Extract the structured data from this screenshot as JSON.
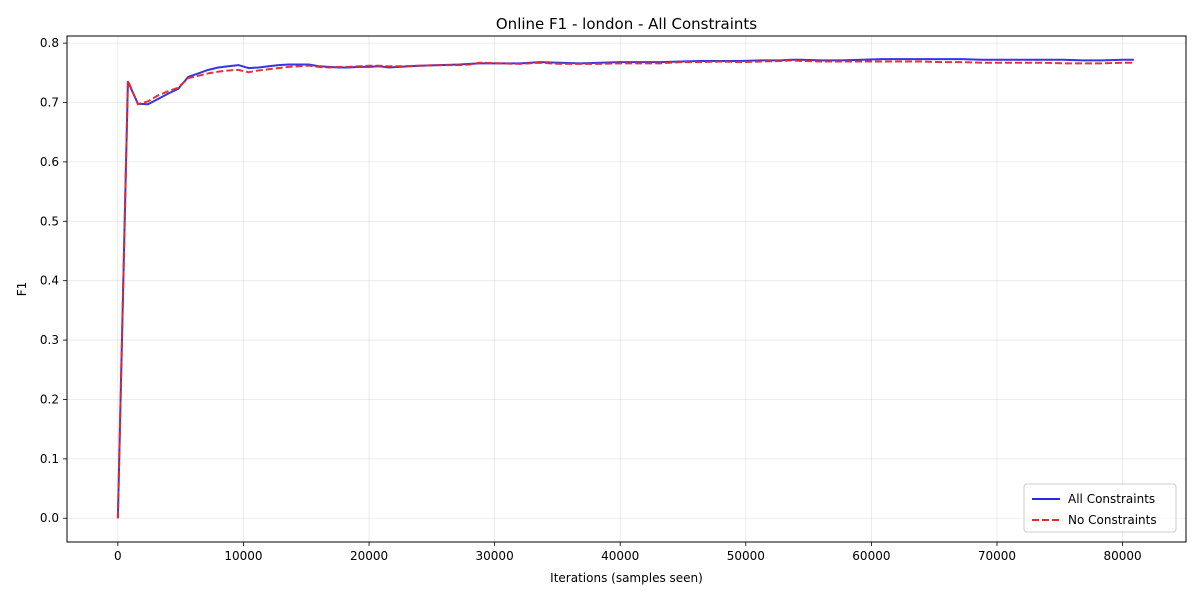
{
  "chart_data": {
    "type": "line",
    "title": "Online F1 - london - All Constraints",
    "xlabel": "Iterations (samples seen)",
    "ylabel": "F1",
    "xlim": [
      -4050,
      85050
    ],
    "ylim": [
      -0.04,
      0.812
    ],
    "xticks": [
      0,
      10000,
      20000,
      30000,
      40000,
      50000,
      60000,
      70000,
      80000
    ],
    "yticks": [
      0.0,
      0.1,
      0.2,
      0.3,
      0.4,
      0.5,
      0.6,
      0.7,
      0.8
    ],
    "xtick_labels": [
      "0",
      "10000",
      "20000",
      "30000",
      "40000",
      "50000",
      "60000",
      "70000",
      "80000"
    ],
    "ytick_labels": [
      "0.0",
      "0.1",
      "0.2",
      "0.3",
      "0.4",
      "0.5",
      "0.6",
      "0.7",
      "0.8"
    ],
    "grid": true,
    "legend_position": "bottom-right",
    "series": [
      {
        "name": "All Constraints",
        "color": "#2a2ae6",
        "style": "solid",
        "x": [
          0,
          800,
          1600,
          2400,
          3200,
          4000,
          4800,
          5600,
          6400,
          7200,
          8000,
          8800,
          9600,
          10400,
          11200,
          12000,
          12800,
          13600,
          14400,
          15200,
          16000,
          16800,
          17600,
          18400,
          19200,
          20000,
          20800,
          21600,
          22400,
          24000,
          25600,
          27200,
          28000,
          28800,
          30400,
          32000,
          33600,
          35200,
          36800,
          38400,
          40000,
          41600,
          43200,
          44800,
          46400,
          48000,
          49600,
          51200,
          52800,
          53600,
          54400,
          56000,
          57600,
          59200,
          60800,
          62400,
          64000,
          65600,
          67200,
          68800,
          70400,
          72000,
          73600,
          75200,
          76800,
          78400,
          80000,
          80900
        ],
        "y": [
          0.0,
          0.735,
          0.698,
          0.697,
          0.706,
          0.715,
          0.723,
          0.743,
          0.749,
          0.755,
          0.759,
          0.761,
          0.763,
          0.758,
          0.759,
          0.761,
          0.763,
          0.764,
          0.764,
          0.764,
          0.761,
          0.76,
          0.759,
          0.759,
          0.76,
          0.76,
          0.761,
          0.759,
          0.76,
          0.762,
          0.763,
          0.764,
          0.765,
          0.766,
          0.766,
          0.766,
          0.768,
          0.767,
          0.766,
          0.767,
          0.768,
          0.768,
          0.768,
          0.769,
          0.77,
          0.77,
          0.77,
          0.771,
          0.771,
          0.772,
          0.772,
          0.771,
          0.771,
          0.772,
          0.773,
          0.773,
          0.773,
          0.773,
          0.773,
          0.772,
          0.772,
          0.772,
          0.772,
          0.772,
          0.771,
          0.771,
          0.772,
          0.772
        ]
      },
      {
        "name": "No Constraints",
        "color": "#e62a2a",
        "style": "dashed",
        "x": [
          0,
          800,
          1600,
          2400,
          3200,
          4000,
          4800,
          5600,
          6400,
          7200,
          8000,
          8800,
          9600,
          10400,
          11200,
          12000,
          12800,
          13600,
          14400,
          15200,
          16000,
          16800,
          17600,
          18400,
          19200,
          20000,
          20800,
          21600,
          22400,
          24000,
          25600,
          27200,
          28000,
          28800,
          30400,
          32000,
          33600,
          35200,
          36800,
          38400,
          40000,
          41600,
          43200,
          44800,
          46400,
          48000,
          49600,
          51200,
          52800,
          53600,
          54400,
          56000,
          57600,
          59200,
          60800,
          62400,
          64000,
          65600,
          67200,
          68800,
          70400,
          72000,
          73600,
          75200,
          76800,
          78400,
          80000,
          80900
        ],
        "y": [
          0.0,
          0.737,
          0.697,
          0.702,
          0.712,
          0.719,
          0.725,
          0.741,
          0.745,
          0.749,
          0.752,
          0.754,
          0.755,
          0.751,
          0.754,
          0.756,
          0.758,
          0.76,
          0.761,
          0.762,
          0.76,
          0.759,
          0.76,
          0.76,
          0.761,
          0.762,
          0.762,
          0.761,
          0.761,
          0.762,
          0.763,
          0.763,
          0.764,
          0.767,
          0.766,
          0.765,
          0.767,
          0.765,
          0.765,
          0.765,
          0.766,
          0.766,
          0.766,
          0.768,
          0.768,
          0.769,
          0.768,
          0.769,
          0.77,
          0.771,
          0.77,
          0.769,
          0.769,
          0.769,
          0.769,
          0.769,
          0.769,
          0.768,
          0.768,
          0.767,
          0.767,
          0.767,
          0.767,
          0.766,
          0.766,
          0.766,
          0.767,
          0.767
        ]
      }
    ]
  }
}
